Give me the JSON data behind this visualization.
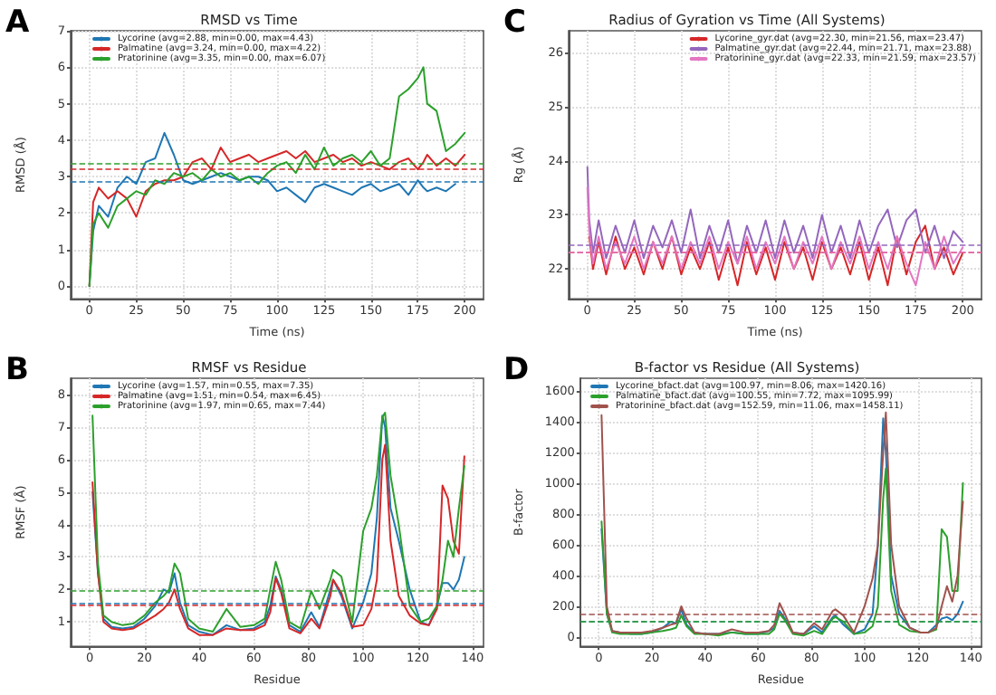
{
  "chart_data": [
    {
      "type": "line",
      "title": "RMSD vs Time",
      "xlabel": "Time (ns)",
      "ylabel": "RMSD (Å)",
      "annotations": [
        "A"
      ],
      "x": [
        0,
        2,
        5,
        10,
        15,
        20,
        25,
        30,
        35,
        40,
        45,
        50,
        55,
        60,
        65,
        70,
        75,
        80,
        85,
        90,
        95,
        100,
        105,
        110,
        115,
        120,
        125,
        130,
        135,
        140,
        145,
        150,
        155,
        160,
        165,
        170,
        175,
        178,
        180,
        185,
        190,
        195,
        200
      ],
      "xlim": [
        -10,
        210
      ],
      "xticks": [
        0,
        25,
        50,
        75,
        100,
        125,
        150,
        175,
        200
      ],
      "ylim": [
        -0.35,
        7
      ],
      "yticks": [
        0,
        1,
        2,
        3,
        4,
        5,
        6,
        7
      ],
      "series": [
        {
          "name": "Lycorine (avg=2.88, min=0.00, max=4.43)",
          "color": "#1f77b4",
          "values": [
            0,
            1.5,
            2.2,
            1.9,
            2.7,
            3.0,
            2.8,
            3.4,
            3.5,
            4.2,
            3.6,
            2.9,
            2.8,
            2.9,
            3.0,
            3.1,
            3.0,
            2.9,
            3.0,
            3.0,
            2.9,
            2.6,
            2.7,
            2.5,
            2.3,
            2.7,
            2.8,
            2.7,
            2.6,
            2.5,
            2.7,
            2.8,
            2.6,
            2.7,
            2.8,
            2.5,
            2.9,
            2.7,
            2.6,
            2.7,
            2.6,
            2.8,
            null
          ]
        },
        {
          "name": "Palmatine (avg=3.24, min=0.00, max=4.22)",
          "color": "#d62728",
          "values": [
            0,
            2.3,
            2.7,
            2.4,
            2.6,
            2.4,
            1.9,
            2.6,
            2.8,
            2.9,
            2.9,
            3.0,
            3.4,
            3.5,
            3.2,
            3.8,
            3.4,
            3.5,
            3.6,
            3.4,
            3.5,
            3.6,
            3.7,
            3.5,
            3.7,
            3.4,
            3.5,
            3.6,
            3.4,
            3.5,
            3.3,
            3.4,
            3.3,
            3.2,
            3.4,
            3.5,
            3.2,
            3.4,
            3.6,
            3.3,
            3.5,
            3.3,
            3.6
          ]
        },
        {
          "name": "Pratorinine (avg=3.35, min=0.00, max=6.07)",
          "color": "#2ca02c",
          "values": [
            0,
            1.7,
            2.0,
            1.6,
            2.2,
            2.4,
            2.6,
            2.5,
            2.9,
            2.8,
            3.1,
            3.0,
            3.1,
            2.9,
            3.2,
            3.0,
            3.1,
            2.9,
            3.0,
            2.8,
            3.1,
            3.3,
            3.4,
            3.1,
            3.6,
            3.2,
            3.8,
            3.3,
            3.5,
            3.6,
            3.4,
            3.7,
            3.3,
            3.5,
            5.2,
            5.4,
            5.7,
            6.0,
            5.0,
            4.8,
            3.7,
            3.9,
            4.2
          ]
        }
      ],
      "ref_lines": [
        {
          "axis": "y",
          "value": 2.88,
          "color": "#1f77b4",
          "line_style": "dashed"
        },
        {
          "axis": "y",
          "value": 3.24,
          "color": "#d62728",
          "line_style": "dashed"
        },
        {
          "axis": "y",
          "value": 3.35,
          "color": "#2ca02c",
          "line_style": "dashed"
        }
      ],
      "grid": true,
      "legend": "top left"
    },
    {
      "type": "line",
      "title": "Radius of Gyration vs Time (All Systems)",
      "xlabel": "Time (ns)",
      "ylabel": "Rg (Å)",
      "annotations": [
        "C"
      ],
      "x": [
        0,
        1,
        3,
        6,
        10,
        15,
        20,
        25,
        30,
        35,
        40,
        45,
        50,
        55,
        60,
        65,
        70,
        75,
        80,
        85,
        90,
        95,
        100,
        105,
        110,
        115,
        120,
        125,
        130,
        135,
        140,
        145,
        150,
        155,
        160,
        165,
        170,
        175,
        180,
        185,
        190,
        195,
        200
      ],
      "xlim": [
        -10,
        210
      ],
      "xticks": [
        0,
        25,
        50,
        75,
        100,
        125,
        150,
        175,
        200
      ],
      "ylim": [
        21.45,
        26.4
      ],
      "yticks": [
        22,
        23,
        24,
        25,
        26
      ],
      "series": [
        {
          "name": "Lycorine_gyr.dat (avg=22.30, min=21.56, max=23.47)",
          "color": "#d62728",
          "values": [
            null,
            22.6,
            22.0,
            22.5,
            21.9,
            22.6,
            22.0,
            22.4,
            21.9,
            22.5,
            22.0,
            22.6,
            21.9,
            22.4,
            22.0,
            22.5,
            21.8,
            22.4,
            21.7,
            22.5,
            21.9,
            22.4,
            21.8,
            22.5,
            22.0,
            22.4,
            21.8,
            22.5,
            22.0,
            22.4,
            21.9,
            22.5,
            21.8,
            22.4,
            21.7,
            22.6,
            21.9,
            22.5,
            22.8,
            22.0,
            22.4,
            21.9,
            22.3
          ]
        },
        {
          "name": "Palmatine_gyr.dat (avg=22.44, min=21.71, max=23.88)",
          "color": "#9467bd",
          "values": [
            23.88,
            22.9,
            22.3,
            22.9,
            22.2,
            22.8,
            22.3,
            22.9,
            22.2,
            22.8,
            22.4,
            22.9,
            22.3,
            23.1,
            22.2,
            22.8,
            22.3,
            22.9,
            22.1,
            22.8,
            22.3,
            22.9,
            22.2,
            22.9,
            22.3,
            22.8,
            22.2,
            23.0,
            22.3,
            22.8,
            22.2,
            22.9,
            22.3,
            22.8,
            23.1,
            22.4,
            22.9,
            23.1,
            22.3,
            22.8,
            22.2,
            22.7,
            22.5
          ]
        },
        {
          "name": "Pratorinine_gyr.dat (avg=22.33, min=21.59, max=23.57)",
          "color": "#e377c2",
          "values": [
            23.5,
            22.7,
            22.1,
            22.6,
            22.0,
            22.5,
            22.1,
            22.6,
            22.0,
            22.5,
            22.1,
            22.6,
            22.0,
            22.5,
            22.1,
            22.6,
            22.0,
            22.5,
            22.1,
            22.6,
            22.0,
            22.5,
            22.1,
            22.6,
            22.0,
            22.5,
            22.1,
            22.6,
            22.0,
            22.5,
            22.1,
            22.6,
            22.0,
            22.5,
            22.0,
            22.6,
            22.1,
            21.7,
            22.5,
            22.0,
            22.6,
            22.1,
            22.4
          ]
        }
      ],
      "ref_lines": [
        {
          "axis": "y",
          "value": 22.3,
          "color": "#d62728",
          "line_style": "dashed"
        },
        {
          "axis": "y",
          "value": 22.44,
          "color": "#9467bd",
          "line_style": "dashed"
        },
        {
          "axis": "y",
          "value": 22.33,
          "color": "#e377c2",
          "line_style": "dashed"
        }
      ],
      "grid": true,
      "legend": "top right"
    },
    {
      "type": "line",
      "title": "RMSF vs Residue",
      "xlabel": "Residue",
      "ylabel": "RMSF (Å)",
      "annotations": [
        "B"
      ],
      "x": [
        1,
        3,
        5,
        8,
        12,
        16,
        20,
        24,
        27,
        29,
        31,
        33,
        36,
        40,
        45,
        50,
        55,
        60,
        64,
        66,
        68,
        70,
        73,
        77,
        81,
        84,
        88,
        89,
        92,
        96,
        100,
        103,
        105,
        107,
        108,
        110,
        113,
        117,
        121,
        124,
        127,
        129,
        131,
        133,
        135,
        137
      ],
      "xlim": [
        -7,
        144
      ],
      "xticks": [
        0,
        20,
        40,
        60,
        80,
        100,
        120,
        140
      ],
      "ylim": [
        0.25,
        8.5
      ],
      "yticks": [
        1,
        2,
        3,
        4,
        5,
        6,
        7,
        8
      ],
      "series": [
        {
          "name": "Lycorine (avg=1.57, min=0.55, max=7.35)",
          "color": "#1f77b4",
          "values": [
            5.0,
            2.5,
            1.1,
            0.85,
            0.8,
            0.85,
            1.1,
            1.5,
            2.0,
            1.9,
            2.5,
            1.6,
            0.9,
            0.7,
            0.6,
            0.9,
            0.75,
            0.8,
            1.0,
            1.5,
            2.4,
            2.0,
            0.9,
            0.7,
            1.3,
            0.85,
            2.0,
            2.3,
            1.8,
            0.8,
            1.6,
            2.5,
            4.2,
            7.35,
            7.0,
            4.5,
            3.5,
            2.0,
            1.0,
            0.9,
            1.5,
            2.2,
            2.2,
            2.0,
            2.3,
            3.0
          ]
        },
        {
          "name": "Palmatine (avg=1.51, min=0.54, max=6.45)",
          "color": "#d62728",
          "values": [
            5.3,
            2.5,
            1.0,
            0.8,
            0.75,
            0.8,
            1.0,
            1.2,
            1.4,
            1.6,
            2.0,
            1.4,
            0.8,
            0.6,
            0.6,
            0.8,
            0.75,
            0.75,
            0.9,
            1.3,
            2.35,
            1.9,
            0.8,
            0.65,
            1.1,
            0.8,
            1.8,
            2.3,
            1.9,
            0.85,
            0.9,
            1.4,
            2.3,
            6.0,
            6.45,
            3.5,
            1.8,
            1.2,
            0.95,
            0.9,
            1.4,
            5.2,
            4.8,
            3.5,
            3.1,
            6.1
          ]
        },
        {
          "name": "Pratorinine (avg=1.97, min=0.65, max=7.44)",
          "color": "#2ca02c",
          "values": [
            7.35,
            2.8,
            1.2,
            1.0,
            0.9,
            0.95,
            1.2,
            1.6,
            1.8,
            2.0,
            2.8,
            2.5,
            1.1,
            0.8,
            0.7,
            1.4,
            0.85,
            0.9,
            1.1,
            2.0,
            2.85,
            2.3,
            1.0,
            0.8,
            1.95,
            1.4,
            2.3,
            2.6,
            2.4,
            1.0,
            3.8,
            4.5,
            5.5,
            7.3,
            7.44,
            5.5,
            4.0,
            1.5,
            1.0,
            1.1,
            1.5,
            2.3,
            3.5,
            3.0,
            4.5,
            5.8
          ]
        }
      ],
      "ref_lines": [
        {
          "axis": "y",
          "value": 1.57,
          "color": "#1f77b4",
          "line_style": "dashed"
        },
        {
          "axis": "y",
          "value": 1.51,
          "color": "#d62728",
          "line_style": "dashed"
        },
        {
          "axis": "y",
          "value": 1.97,
          "color": "#2ca02c",
          "line_style": "dashed"
        }
      ],
      "grid": true,
      "legend": "top left"
    },
    {
      "type": "line",
      "title": "B-factor vs Residue (All Systems)",
      "xlabel": "Residue",
      "ylabel": "B-factor",
      "annotations": [
        "D"
      ],
      "x": [
        1,
        3,
        5,
        8,
        12,
        16,
        20,
        24,
        27,
        29,
        31,
        33,
        36,
        40,
        45,
        50,
        55,
        60,
        64,
        66,
        68,
        70,
        73,
        77,
        81,
        84,
        88,
        89,
        92,
        96,
        100,
        103,
        105,
        107,
        108,
        110,
        113,
        117,
        121,
        124,
        127,
        129,
        131,
        133,
        135,
        137
      ],
      "xlim": [
        -7,
        144
      ],
      "xticks": [
        0,
        20,
        40,
        60,
        80,
        100,
        120,
        140
      ],
      "ylim": [
        -60,
        1680
      ],
      "yticks": [
        0,
        200,
        400,
        600,
        800,
        1000,
        1200,
        1400,
        1600
      ],
      "series": [
        {
          "name": "Lycorine_bfact.dat (avg=100.97, min=8.06, max=1420.16)",
          "color": "#1f77b4",
          "values": [
            700,
            150,
            40,
            30,
            20,
            20,
            30,
            60,
            100,
            90,
            180,
            80,
            30,
            20,
            20,
            30,
            20,
            20,
            40,
            60,
            170,
            120,
            30,
            20,
            70,
            30,
            130,
            140,
            80,
            20,
            50,
            150,
            600,
            1420,
            1200,
            400,
            150,
            60,
            30,
            30,
            80,
            120,
            130,
            110,
            150,
            230
          ]
        },
        {
          "name": "Palmatine_bfact.dat (avg=100.55, min=7.72, max=1095.99)",
          "color": "#2ca02c",
          "values": [
            750,
            150,
            30,
            20,
            20,
            20,
            30,
            40,
            50,
            60,
            140,
            70,
            20,
            20,
            10,
            30,
            20,
            20,
            20,
            50,
            150,
            110,
            20,
            10,
            40,
            20,
            120,
            130,
            100,
            20,
            30,
            70,
            200,
            900,
            1096,
            300,
            80,
            40,
            30,
            30,
            50,
            700,
            650,
            300,
            300,
            1000
          ]
        },
        {
          "name": "Pratorinine_bfact.dat (avg=152.59, min=11.06, max=1458.11)",
          "color": "#a0524d",
          "values": [
            1440,
            200,
            40,
            30,
            30,
            30,
            40,
            60,
            80,
            90,
            200,
            120,
            30,
            20,
            20,
            50,
            30,
            30,
            40,
            80,
            220,
            150,
            30,
            20,
            90,
            50,
            170,
            180,
            140,
            30,
            200,
            380,
            600,
            1200,
            1458,
            600,
            200,
            60,
            30,
            30,
            60,
            200,
            330,
            230,
            400,
            880
          ]
        }
      ],
      "ref_lines": [
        {
          "axis": "y",
          "value": 100.97,
          "color": "#1f77b4",
          "line_style": "dashed"
        },
        {
          "axis": "y",
          "value": 100.55,
          "color": "#2ca02c",
          "line_style": "dashed"
        },
        {
          "axis": "y",
          "value": 152.59,
          "color": "#a0524d",
          "line_style": "dashed"
        }
      ],
      "grid": true,
      "legend": "top left"
    }
  ]
}
